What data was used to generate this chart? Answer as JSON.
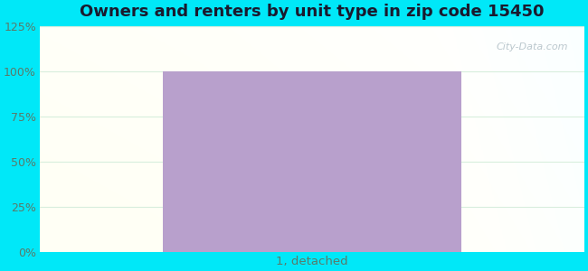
{
  "title": "Owners and renters by unit type in zip code 15450",
  "title_fontsize": 13,
  "categories": [
    "1, detached"
  ],
  "values": [
    100
  ],
  "bar_color": "#b8a0cc",
  "bar_width": 0.55,
  "ylim": [
    0,
    125
  ],
  "yticks": [
    0,
    25,
    50,
    75,
    100,
    125
  ],
  "ytick_labels": [
    "0%",
    "25%",
    "50%",
    "75%",
    "100%",
    "125%"
  ],
  "bg_cyan_color": "#00e8f8",
  "watermark_text": "City-Data.com",
  "watermark_color": "#b0bec5",
  "grid_color": "#d8eedd",
  "axis_label_color": "#5a7a6a",
  "tick_label_color": "#5a7a6a"
}
